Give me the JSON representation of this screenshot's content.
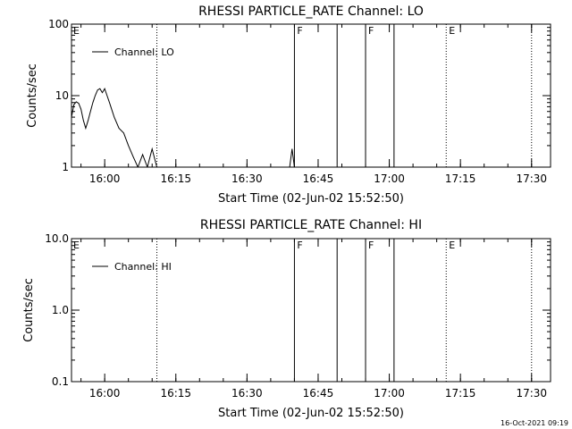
{
  "chart_data": [
    {
      "type": "line",
      "title": "RHESSI PARTICLE_RATE Channel: LO",
      "xlabel": "Start Time (02-Jun-02 15:52:50)",
      "ylabel": "Counts/sec",
      "x_ticks": [
        "16:00",
        "16:15",
        "16:30",
        "16:45",
        "17:00",
        "17:15",
        "17:30"
      ],
      "y_ticks": [
        "1",
        "10",
        "100"
      ],
      "y_scale": "log",
      "ylim": [
        1,
        100
      ],
      "xlim": [
        "15:53",
        "17:34"
      ],
      "legend": "top-left",
      "series": [
        {
          "name": "Channel: LO",
          "color": "#000000",
          "points": [
            [
              "15:53",
              5
            ],
            [
              "15:53:30",
              7.5
            ],
            [
              "15:54",
              8.2
            ],
            [
              "15:54:30",
              7.8
            ],
            [
              "15:55",
              6.5
            ],
            [
              "15:55:30",
              4.5
            ],
            [
              "15:56",
              3.5
            ],
            [
              "15:56:30",
              4.5
            ],
            [
              "15:57",
              6
            ],
            [
              "15:57:30",
              8
            ],
            [
              "15:58",
              10
            ],
            [
              "15:58:30",
              12
            ],
            [
              "15:59",
              12.5
            ],
            [
              "15:59:30",
              11
            ],
            [
              "16:00",
              12.5
            ],
            [
              "16:00:30",
              10
            ],
            [
              "16:01",
              8
            ],
            [
              "16:02",
              5
            ],
            [
              "16:03",
              3.5
            ],
            [
              "16:04",
              3
            ],
            [
              "16:05",
              2
            ],
            [
              "16:06",
              1.4
            ],
            [
              "16:07",
              1
            ],
            [
              "16:08",
              1.5
            ],
            [
              "16:09",
              1
            ],
            [
              "16:10",
              1.8
            ],
            [
              "16:11",
              1
            ],
            [
              "16:39",
              1
            ],
            [
              "16:39:30",
              1.8
            ],
            [
              "16:40",
              1
            ]
          ]
        }
      ],
      "vlines": [
        {
          "time": "16:11",
          "style": "dotted",
          "label": ""
        },
        {
          "time": "16:40",
          "style": "solid",
          "label": "F"
        },
        {
          "time": "16:49",
          "style": "solid",
          "label": ""
        },
        {
          "time": "16:55",
          "style": "solid",
          "label": "F"
        },
        {
          "time": "17:01",
          "style": "solid",
          "label": ""
        },
        {
          "time": "17:12",
          "style": "dotted",
          "label": "E"
        },
        {
          "time": "17:30",
          "style": "dotted",
          "label": ""
        }
      ],
      "corner_label": "E"
    },
    {
      "type": "line",
      "title": "RHESSI PARTICLE_RATE Channel: HI",
      "xlabel": "Start Time (02-Jun-02 15:52:50)",
      "ylabel": "Counts/sec",
      "x_ticks": [
        "16:00",
        "16:15",
        "16:30",
        "16:45",
        "17:00",
        "17:15",
        "17:30"
      ],
      "y_ticks": [
        "0.1",
        "1.0",
        "10.0"
      ],
      "y_scale": "log",
      "ylim": [
        0.1,
        10
      ],
      "xlim": [
        "15:53",
        "17:34"
      ],
      "legend": "top-left",
      "series": [
        {
          "name": "Channel: HI",
          "color": "#000000",
          "points": []
        }
      ],
      "vlines": [
        {
          "time": "16:11",
          "style": "dotted",
          "label": ""
        },
        {
          "time": "16:40",
          "style": "solid",
          "label": "F"
        },
        {
          "time": "16:49",
          "style": "solid",
          "label": ""
        },
        {
          "time": "16:55",
          "style": "solid",
          "label": "F"
        },
        {
          "time": "17:01",
          "style": "solid",
          "label": ""
        },
        {
          "time": "17:12",
          "style": "dotted",
          "label": "E"
        },
        {
          "time": "17:30",
          "style": "dotted",
          "label": ""
        }
      ],
      "corner_label": "E"
    }
  ],
  "footer": {
    "timestamp": "16-Oct-2021 09:19"
  }
}
